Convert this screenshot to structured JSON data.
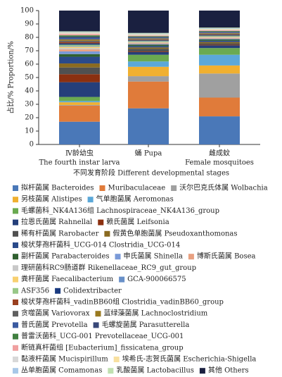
{
  "chart_data": {
    "type": "stacked_bar",
    "ylabel": "占比/% Proportion/%",
    "xlabel": "不同发育阶段 Different developmental stages",
    "categories": [
      "Ⅳ龄幼虫",
      "蛹 Pupa",
      "雌成蚊"
    ],
    "categories_en": [
      "The fourth instar larva",
      null,
      "Female mosquitoes"
    ],
    "ylim": [
      0,
      100
    ],
    "yticks": [
      0,
      10,
      20,
      30,
      40,
      50,
      60,
      70,
      80,
      90,
      100
    ],
    "series": [
      {
        "name": "拟杆菌属 Bacteroides",
        "color": "#4a78b8",
        "values": [
          17,
          27,
          21
        ]
      },
      {
        "name": "Muribaculaceae",
        "color": "#e07b3a",
        "values": [
          12,
          20,
          14
        ]
      },
      {
        "name": "沃尔巴克氏体属 Wolbachia",
        "color": "#a0a0a0",
        "values": [
          0.5,
          4,
          18
        ]
      },
      {
        "name": "另枝菌属 Alistipes",
        "color": "#f0b030",
        "values": [
          2,
          7,
          6
        ]
      },
      {
        "name": "气单胞菌属 Aeromonas",
        "color": "#5ba8d8",
        "values": [
          1,
          4,
          8
        ]
      },
      {
        "name": "毛螺菌科_NK4A136组 Lachnospiraceae_NK4A136_group",
        "color": "#6aaa50",
        "values": [
          3,
          5,
          5
        ]
      },
      {
        "name": "拉恩氏菌属 Rahnellal",
        "color": "#253f7a",
        "values": [
          11,
          2,
          2
        ]
      },
      {
        "name": "赖氏菌属 Leifsonia",
        "color": "#8b3010",
        "values": [
          6,
          0.5,
          0.5
        ]
      },
      {
        "name": "稀有杆菌属 Rarobacter",
        "color": "#505050",
        "values": [
          5,
          2,
          1
        ]
      },
      {
        "name": "假黄色单胞菌属 Pseudoxanthomonas",
        "color": "#8a6a20",
        "values": [
          3,
          1,
          1
        ]
      },
      {
        "name": "梭状芽孢杆菌科_UCG-014 Clostridia_UCG-014",
        "color": "#2a4a8a",
        "values": [
          5,
          1,
          1
        ]
      },
      {
        "name": "副杆菌属 Parabacteroides",
        "color": "#306030",
        "values": [
          2,
          1,
          1
        ]
      },
      {
        "name": "申氏菌属 Shinella",
        "color": "#7a9ad8",
        "values": [
          2,
          0.5,
          0.5
        ]
      },
      {
        "name": "博斯氏菌属 Bosea",
        "color": "#e8a080",
        "values": [
          1.5,
          0.5,
          0.5
        ]
      },
      {
        "name": "理研菌科RC9肠道群 Rikenellaceae_RC9_gut_group",
        "color": "#c8c8c8",
        "values": [
          1,
          0.5,
          0.5
        ]
      },
      {
        "name": "粪杆菌属 Faecalibacterium",
        "color": "#f8d070",
        "values": [
          1,
          0.5,
          0.5
        ]
      },
      {
        "name": "GCA-900066575",
        "color": "#6890c8",
        "values": [
          0.5,
          0.3,
          0.3
        ]
      },
      {
        "name": "ASF356",
        "color": "#98c888",
        "values": [
          1,
          0.5,
          0.5
        ]
      },
      {
        "name": "Colidextribacter",
        "color": "#1a3a80",
        "values": [
          1,
          0.5,
          0.5
        ]
      },
      {
        "name": "梭状芽孢杆菌科_vadinBB60组 Clostridia_vadinBB60_group",
        "color": "#9a4020",
        "values": [
          1,
          0.5,
          0.5
        ]
      },
      {
        "name": "贪噬菌属 Variovorax",
        "color": "#606060",
        "values": [
          1,
          0.5,
          0.5
        ]
      },
      {
        "name": "蓝绿藻菌属 Lachnoclostridium",
        "color": "#9a7a20",
        "values": [
          1,
          0.5,
          0.5
        ]
      },
      {
        "name": "普氏菌属 Prevotella",
        "color": "#3a5aa0",
        "values": [
          1,
          0.5,
          0.5
        ]
      },
      {
        "name": "毛螺旋菌属 Parasutterella",
        "color": "#384878",
        "values": [
          1,
          0.5,
          0.5
        ]
      },
      {
        "name": "普雷沃菌科_UCG-001 Prevotellaceae_UCG-001",
        "color": "#408040",
        "values": [
          1,
          0.5,
          0.5
        ]
      },
      {
        "name": "断链真杆菌组 [Eubacterium]_fissicatena_group",
        "color": "#f0a0a0",
        "values": [
          1,
          0.5,
          0.5
        ]
      },
      {
        "name": "黏液杆菌属 Mucispirillum",
        "color": "#d8d8d8",
        "values": [
          0.5,
          0.5,
          0.5
        ]
      },
      {
        "name": "埃希氏-志贺氏菌属 Escherichia-Shigella",
        "color": "#f8e0a0",
        "values": [
          0.5,
          0.5,
          0.5
        ]
      },
      {
        "name": "丛单胞菌属 Comamonas",
        "color": "#a8c8e8",
        "values": [
          0.5,
          0.5,
          0.5
        ]
      },
      {
        "name": "乳酸菌属 Lactobacillus",
        "color": "#c0e0b0",
        "values": [
          0.5,
          0.5,
          0.5
        ]
      },
      {
        "name": "其他 Others",
        "color": "#1a2040",
        "values": [
          15.5,
          16.7,
          12.7
        ]
      }
    ]
  }
}
